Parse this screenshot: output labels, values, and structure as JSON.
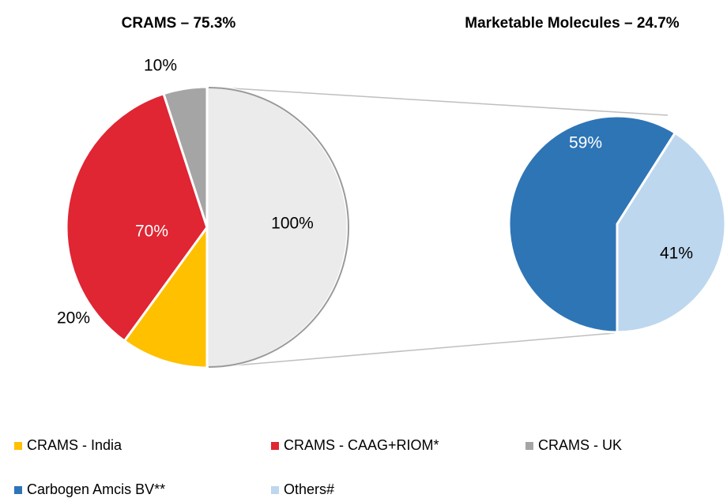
{
  "chart_data": [
    {
      "type": "pie",
      "title": "CRAMS – 75.3%",
      "categories": [
        "CRAMS - India",
        "CRAMS - CAAG+RIOM*",
        "CRAMS - UK",
        null
      ],
      "values": [
        20,
        70,
        10,
        100
      ],
      "value_labels": [
        "20%",
        "70%",
        "10%",
        "100%"
      ],
      "colors": [
        "#FFC000",
        "#E02533",
        "#A5A5A5",
        "#EBEBEB"
      ]
    },
    {
      "type": "pie",
      "title": "Marketable Molecules – 24.7%",
      "categories": [
        "Carbogen Amcis BV**",
        "Others#"
      ],
      "values": [
        59,
        41
      ],
      "value_labels": [
        "59%",
        "41%"
      ],
      "colors": [
        "#2E75B6",
        "#BDD7EE"
      ]
    }
  ]
}
